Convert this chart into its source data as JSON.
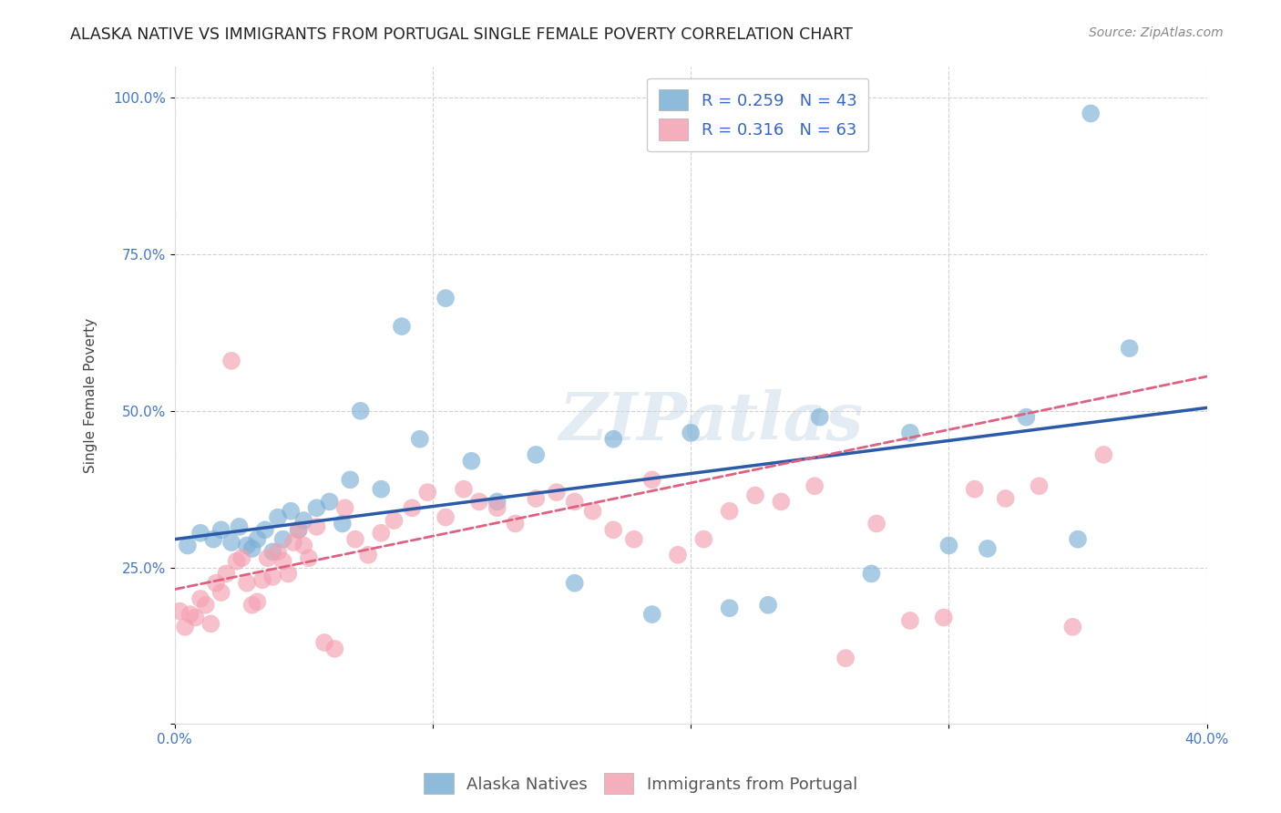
{
  "title": "ALASKA NATIVE VS IMMIGRANTS FROM PORTUGAL SINGLE FEMALE POVERTY CORRELATION CHART",
  "source": "Source: ZipAtlas.com",
  "ylabel": "Single Female Poverty",
  "xlim": [
    0.0,
    0.4
  ],
  "ylim": [
    0.0,
    1.05
  ],
  "x_ticks": [
    0.0,
    0.1,
    0.2,
    0.3,
    0.4
  ],
  "x_tick_labels": [
    "0.0%",
    "",
    "",
    "",
    "40.0%"
  ],
  "y_ticks": [
    0.0,
    0.25,
    0.5,
    0.75,
    1.0
  ],
  "y_tick_labels_right": [
    "",
    "25.0%",
    "50.0%",
    "75.0%",
    "100.0%"
  ],
  "color_blue": "#7BAFD4",
  "color_pink": "#F4A0B0",
  "color_blue_line": "#2B5BA8",
  "color_pink_line": "#E06080",
  "color_blue_text": "#3366CC",
  "color_axis_tick": "#4477CC",
  "watermark_text": "ZIPatlas",
  "blue_scatter_x": [
    0.005,
    0.01,
    0.015,
    0.018,
    0.022,
    0.025,
    0.028,
    0.03,
    0.032,
    0.035,
    0.038,
    0.04,
    0.042,
    0.045,
    0.048,
    0.05,
    0.055,
    0.06,
    0.065,
    0.068,
    0.072,
    0.08,
    0.088,
    0.095,
    0.105,
    0.115,
    0.125,
    0.14,
    0.155,
    0.17,
    0.185,
    0.2,
    0.215,
    0.23,
    0.25,
    0.27,
    0.285,
    0.3,
    0.315,
    0.33,
    0.35,
    0.37,
    0.355
  ],
  "blue_scatter_y": [
    0.285,
    0.305,
    0.295,
    0.31,
    0.29,
    0.315,
    0.285,
    0.28,
    0.295,
    0.31,
    0.275,
    0.33,
    0.295,
    0.34,
    0.31,
    0.325,
    0.345,
    0.355,
    0.32,
    0.39,
    0.5,
    0.375,
    0.635,
    0.455,
    0.68,
    0.42,
    0.355,
    0.43,
    0.225,
    0.455,
    0.175,
    0.465,
    0.185,
    0.19,
    0.49,
    0.24,
    0.465,
    0.285,
    0.28,
    0.49,
    0.295,
    0.6,
    0.975
  ],
  "pink_scatter_x": [
    0.002,
    0.004,
    0.006,
    0.008,
    0.01,
    0.012,
    0.014,
    0.016,
    0.018,
    0.02,
    0.022,
    0.024,
    0.026,
    0.028,
    0.03,
    0.032,
    0.034,
    0.036,
    0.038,
    0.04,
    0.042,
    0.044,
    0.046,
    0.048,
    0.05,
    0.052,
    0.055,
    0.058,
    0.062,
    0.066,
    0.07,
    0.075,
    0.08,
    0.085,
    0.092,
    0.098,
    0.105,
    0.112,
    0.118,
    0.125,
    0.132,
    0.14,
    0.148,
    0.155,
    0.162,
    0.17,
    0.178,
    0.185,
    0.195,
    0.205,
    0.215,
    0.225,
    0.235,
    0.248,
    0.26,
    0.272,
    0.285,
    0.298,
    0.31,
    0.322,
    0.335,
    0.348,
    0.36
  ],
  "pink_scatter_y": [
    0.18,
    0.155,
    0.175,
    0.17,
    0.2,
    0.19,
    0.16,
    0.225,
    0.21,
    0.24,
    0.58,
    0.26,
    0.265,
    0.225,
    0.19,
    0.195,
    0.23,
    0.265,
    0.235,
    0.275,
    0.26,
    0.24,
    0.29,
    0.31,
    0.285,
    0.265,
    0.315,
    0.13,
    0.12,
    0.345,
    0.295,
    0.27,
    0.305,
    0.325,
    0.345,
    0.37,
    0.33,
    0.375,
    0.355,
    0.345,
    0.32,
    0.36,
    0.37,
    0.355,
    0.34,
    0.31,
    0.295,
    0.39,
    0.27,
    0.295,
    0.34,
    0.365,
    0.355,
    0.38,
    0.105,
    0.32,
    0.165,
    0.17,
    0.375,
    0.36,
    0.38,
    0.155,
    0.43
  ],
  "blue_line_x": [
    0.0,
    0.4
  ],
  "blue_line_y": [
    0.295,
    0.505
  ],
  "pink_line_x": [
    0.0,
    0.4
  ],
  "pink_line_y": [
    0.215,
    0.555
  ],
  "grid_color": "#CCCCCC",
  "background_color": "#FFFFFF",
  "title_fontsize": 12.5,
  "axis_label_fontsize": 11,
  "tick_fontsize": 11,
  "legend_fontsize": 13,
  "source_fontsize": 10
}
